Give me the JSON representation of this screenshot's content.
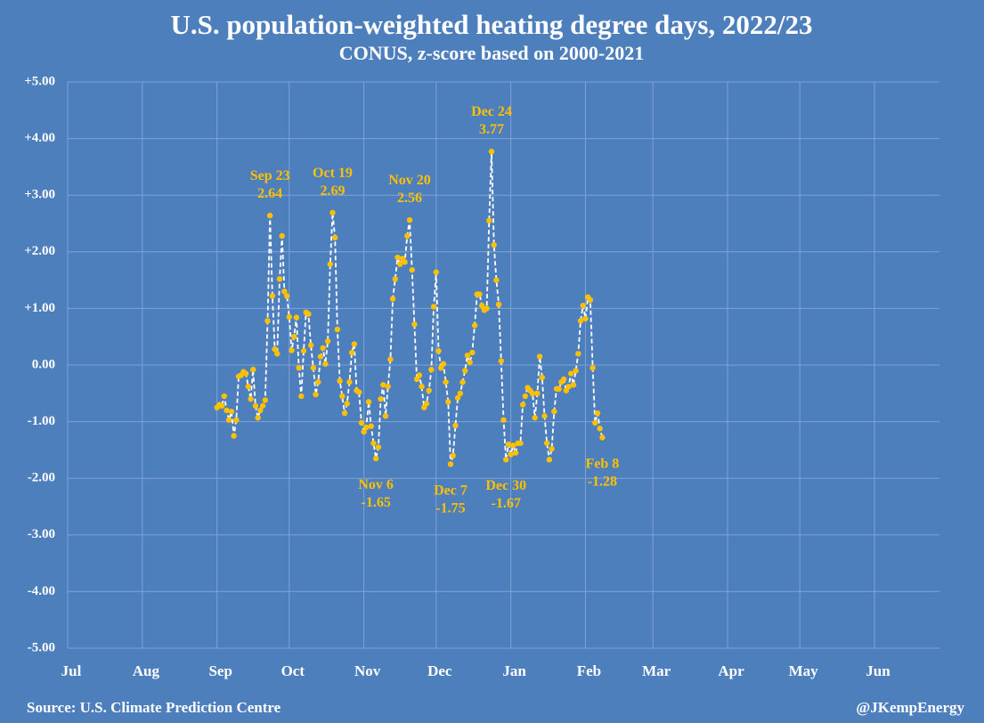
{
  "chart_data": {
    "type": "line",
    "title": "U.S. population-weighted heating degree days, 2022/23",
    "subtitle": "CONUS, z-score based on 2000-2021",
    "source": "Source: U.S. Climate Prediction Centre",
    "credit": "@JKempEnergy",
    "xlim": [
      0,
      362
    ],
    "xticks": [
      {
        "value": 0,
        "label": "Jul"
      },
      {
        "value": 31,
        "label": "Aug"
      },
      {
        "value": 62,
        "label": "Sep"
      },
      {
        "value": 92,
        "label": "Oct"
      },
      {
        "value": 123,
        "label": "Nov"
      },
      {
        "value": 153,
        "label": "Dec"
      },
      {
        "value": 184,
        "label": "Jan"
      },
      {
        "value": 215,
        "label": "Feb"
      },
      {
        "value": 243,
        "label": "Mar"
      },
      {
        "value": 274,
        "label": "Apr"
      },
      {
        "value": 304,
        "label": "May"
      },
      {
        "value": 335,
        "label": "Jun"
      }
    ],
    "ylim": [
      -5,
      5
    ],
    "yticks": [
      {
        "value": 5,
        "label": "+5.00"
      },
      {
        "value": 4,
        "label": "+4.00"
      },
      {
        "value": 3,
        "label": "+3.00"
      },
      {
        "value": 2,
        "label": "+2.00"
      },
      {
        "value": 1,
        "label": "+1.00"
      },
      {
        "value": 0,
        "label": "0.00"
      },
      {
        "value": -1,
        "label": "-1.00"
      },
      {
        "value": -2,
        "label": "-2.00"
      },
      {
        "value": -3,
        "label": "-3.00"
      },
      {
        "value": -4,
        "label": "-4.00"
      },
      {
        "value": -5,
        "label": "-5.00"
      }
    ],
    "grid": true,
    "series": [
      {
        "color": "#ffc000",
        "line_color": "#ffffff",
        "x": [
          62,
          63,
          64,
          65,
          66,
          67,
          68,
          69,
          70,
          71,
          72,
          73,
          74,
          75,
          76,
          77,
          78,
          79,
          80,
          81,
          82,
          83,
          84,
          85,
          86,
          87,
          88,
          89,
          90,
          91,
          92,
          93,
          94,
          95,
          96,
          97,
          98,
          99,
          100,
          101,
          102,
          103,
          104,
          105,
          106,
          107,
          108,
          109,
          110,
          111,
          112,
          113,
          114,
          115,
          116,
          117,
          118,
          119,
          120,
          121,
          122,
          123,
          124,
          125,
          126,
          127,
          128,
          129,
          130,
          131,
          132,
          133,
          134,
          135,
          136,
          137,
          138,
          139,
          140,
          141,
          142,
          143,
          144,
          145,
          146,
          147,
          148,
          149,
          150,
          151,
          152,
          153,
          154,
          155,
          156,
          157,
          158,
          159,
          160,
          161,
          162,
          163,
          164,
          165,
          166,
          167,
          168,
          169,
          170,
          171,
          172,
          173,
          174,
          175,
          176,
          177,
          178,
          179,
          180,
          181,
          182,
          183,
          184,
          185,
          186,
          187,
          188,
          189,
          190,
          191,
          192,
          193,
          194,
          195,
          196,
          197,
          198,
          199,
          200,
          201,
          202,
          203,
          204,
          205,
          206,
          207,
          208,
          209,
          210,
          211,
          212,
          213,
          214,
          215,
          216,
          217,
          218,
          219,
          220,
          221,
          222
        ],
        "values": [
          -0.75,
          -0.7,
          -0.72,
          -0.55,
          -0.8,
          -0.97,
          -0.82,
          -1.25,
          -0.97,
          -0.2,
          -0.18,
          -0.12,
          -0.15,
          -0.38,
          -0.6,
          -0.08,
          -0.72,
          -0.93,
          -0.8,
          -0.72,
          -0.62,
          0.78,
          2.64,
          1.22,
          0.28,
          0.2,
          1.52,
          2.28,
          1.3,
          1.22,
          0.85,
          0.26,
          0.5,
          0.84,
          -0.05,
          -0.55,
          0.25,
          0.93,
          0.9,
          0.35,
          -0.05,
          -0.52,
          -0.3,
          0.15,
          0.3,
          0.02,
          0.42,
          1.78,
          2.69,
          2.25,
          0.63,
          -0.28,
          -0.55,
          -0.85,
          -0.68,
          -0.3,
          0.22,
          0.37,
          -0.45,
          -0.48,
          -1.02,
          -1.18,
          -1.1,
          -0.65,
          -1.08,
          -1.38,
          -1.65,
          -1.45,
          -0.6,
          -0.35,
          -0.9,
          -0.38,
          0.1,
          1.17,
          1.52,
          1.9,
          1.78,
          1.88,
          1.82,
          2.28,
          2.56,
          1.68,
          0.72,
          -0.25,
          -0.18,
          -0.38,
          -0.75,
          -0.68,
          -0.45,
          -0.08,
          1.03,
          1.64,
          0.25,
          -0.05,
          0.02,
          -0.3,
          -0.65,
          -1.75,
          -1.6,
          -1.07,
          -0.58,
          -0.5,
          -0.3,
          -0.1,
          0.17,
          0.05,
          0.22,
          0.7,
          1.25,
          1.25,
          1.05,
          0.97,
          1.0,
          2.55,
          3.77,
          2.12,
          1.5,
          1.07,
          0.07,
          -0.97,
          -1.67,
          -1.4,
          -1.58,
          -1.42,
          -1.55,
          -1.38,
          -1.38,
          -0.7,
          -0.55,
          -0.4,
          -0.45,
          -0.5,
          -0.93,
          -0.5,
          0.15,
          -0.22,
          -0.9,
          -1.38,
          -1.67,
          -1.48,
          -0.82,
          -0.42,
          -0.42,
          -0.3,
          -0.25,
          -0.45,
          -0.38,
          -0.15,
          -0.35,
          -0.1,
          0.2,
          0.78,
          1.05,
          0.82,
          1.2,
          1.15,
          -0.05,
          -1.02,
          -0.85,
          -1.12,
          -1.28
        ]
      }
    ],
    "annotations": [
      {
        "text": "Sep 23",
        "value": 2.64
      },
      {
        "text": "Oct 19",
        "value": 2.69
      },
      {
        "text": "Nov 6",
        "value": -1.65
      },
      {
        "text": "Nov 20",
        "value": 2.56
      },
      {
        "text": "Dec 7",
        "value": -1.75
      },
      {
        "text": "Dec 24",
        "value": 3.77
      },
      {
        "text": "Dec 30",
        "value": -1.67
      },
      {
        "text": "Feb 8",
        "value": -1.28
      }
    ]
  }
}
